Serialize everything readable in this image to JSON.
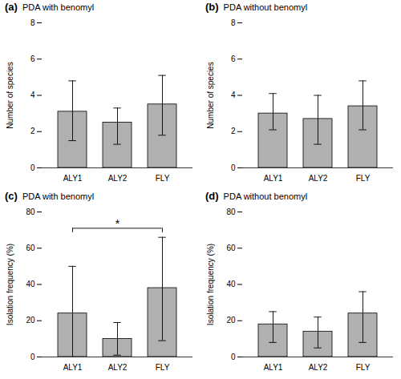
{
  "chart_data": [
    {
      "type": "bar",
      "label": "(a)",
      "title": "PDA with benomyl",
      "ylabel": "Number of species",
      "categories": [
        "ALY1",
        "ALY2",
        "FLY"
      ],
      "values": [
        3.1,
        2.5,
        3.5
      ],
      "errors_upper": [
        4.8,
        3.3,
        5.1
      ],
      "errors_lower": [
        1.5,
        1.3,
        1.8
      ],
      "color": "#b0b0b0",
      "ylim": [
        0,
        8
      ],
      "yticks": [
        0,
        2,
        4,
        6,
        8
      ],
      "grid": false
    },
    {
      "type": "bar",
      "label": "(b)",
      "title": "PDA without benomyl",
      "ylabel": "Number of species",
      "categories": [
        "ALY1",
        "ALY2",
        "FLY"
      ],
      "values": [
        3.0,
        2.7,
        3.4
      ],
      "errors_upper": [
        4.1,
        4.0,
        4.8
      ],
      "errors_lower": [
        2.1,
        1.3,
        2.1
      ],
      "color": "#b0b0b0",
      "ylim": [
        0,
        8
      ],
      "yticks": [
        0,
        2,
        4,
        6,
        8
      ],
      "grid": false
    },
    {
      "type": "bar",
      "label": "(c)",
      "title": "PDA with benomyl",
      "ylabel": "Isolation frequency (%)",
      "categories": [
        "ALY1",
        "ALY2",
        "FLY"
      ],
      "values": [
        24,
        10,
        38
      ],
      "errors_upper": [
        50,
        19,
        66
      ],
      "errors_lower": [
        0,
        1,
        9
      ],
      "color": "#b0b0b0",
      "ylim": [
        0,
        80
      ],
      "yticks": [
        0,
        20,
        40,
        60,
        80
      ],
      "grid": false,
      "annotations": [
        {
          "text": "*",
          "x": "ALY2",
          "y": 71,
          "x1": "ALY1",
          "x2": "FLY"
        }
      ]
    },
    {
      "type": "bar",
      "label": "(d)",
      "title": "PDA without benomyl",
      "ylabel": "Isolation frequency (%)",
      "categories": [
        "ALY1",
        "ALY2",
        "FLY"
      ],
      "values": [
        18,
        14,
        24
      ],
      "errors_upper": [
        25,
        22,
        36
      ],
      "errors_lower": [
        8,
        5,
        8
      ],
      "color": "#b0b0b0",
      "ylim": [
        0,
        80
      ],
      "yticks": [
        0,
        20,
        40,
        60,
        80
      ],
      "grid": false
    }
  ]
}
